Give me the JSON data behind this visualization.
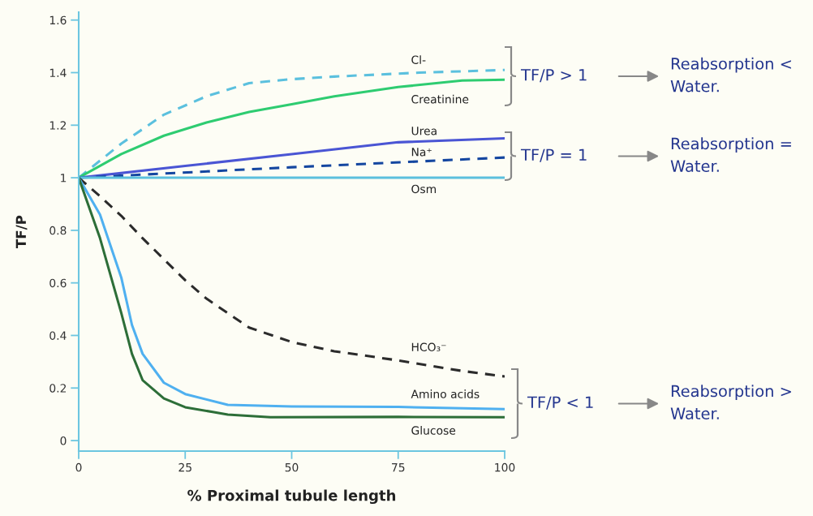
{
  "chart_data": {
    "type": "line",
    "xlabel": "% Proximal tubule length",
    "ylabel": "TF/P",
    "xlim": [
      0,
      100
    ],
    "ylim": [
      -0.04,
      1.63
    ],
    "xticks": [
      0,
      25,
      50,
      75,
      100
    ],
    "yticks": [
      0,
      0.2,
      0.4,
      0.6,
      0.8,
      1,
      1.2,
      1.4,
      1.6
    ],
    "grid": false,
    "legend": false,
    "series": [
      {
        "name": "Cl-",
        "color": "#5bc0de",
        "line_style": "dashed",
        "x": [
          0,
          10,
          20,
          30,
          40,
          50,
          60,
          80,
          100
        ],
        "values": [
          1,
          1.13,
          1.24,
          1.31,
          1.36,
          1.375,
          1.385,
          1.4,
          1.41
        ]
      },
      {
        "name": "Creatinine",
        "color": "#2ecc71",
        "line_style": "solid",
        "x": [
          0,
          10,
          20,
          30,
          40,
          50,
          60,
          75,
          90,
          100
        ],
        "values": [
          1,
          1.09,
          1.16,
          1.21,
          1.25,
          1.28,
          1.31,
          1.345,
          1.37,
          1.373
        ]
      },
      {
        "name": "Urea",
        "color": "#4a55d4",
        "line_style": "solid",
        "x": [
          0,
          25,
          50,
          75,
          100
        ],
        "values": [
          1,
          1.045,
          1.09,
          1.135,
          1.15
        ]
      },
      {
        "name": "Na⁺",
        "color": "#1446a0",
        "line_style": "dashed",
        "x": [
          0,
          50,
          100
        ],
        "values": [
          1,
          1.04,
          1.077
        ]
      },
      {
        "name": "Osm",
        "color": "#5bc0de",
        "line_style": "solid",
        "x": [
          0,
          100
        ],
        "values": [
          1,
          1
        ]
      },
      {
        "name": "HCO₃⁻",
        "color": "#2b2b2b",
        "line_style": "dashed",
        "x": [
          0,
          5,
          10,
          15,
          20,
          25,
          30,
          40,
          50,
          60,
          75,
          90,
          100
        ],
        "values": [
          1,
          0.93,
          0.855,
          0.77,
          0.69,
          0.61,
          0.54,
          0.43,
          0.375,
          0.34,
          0.305,
          0.265,
          0.244
        ]
      },
      {
        "name": "Amino acids",
        "color": "#4fb0f0",
        "line_style": "solid",
        "x": [
          0,
          5,
          10,
          12.5,
          15,
          20,
          25,
          35,
          50,
          75,
          100
        ],
        "values": [
          1,
          0.86,
          0.62,
          0.44,
          0.33,
          0.22,
          0.177,
          0.136,
          0.13,
          0.128,
          0.12
        ]
      },
      {
        "name": "Glucose",
        "color": "#2d6e38",
        "line_style": "solid",
        "x": [
          0,
          5,
          10,
          12.5,
          15,
          20,
          25,
          35,
          45,
          75,
          100
        ],
        "values": [
          1,
          0.77,
          0.485,
          0.33,
          0.23,
          0.16,
          0.127,
          0.099,
          0.089,
          0.09,
          0.089
        ]
      }
    ],
    "annotations": [
      "TF/P > 1",
      "Reabsorption <\nWater.",
      "TF/P = 1",
      "Reabsorption =\nWater.",
      "TF/P < 1",
      "Reabsorption >\nWater."
    ]
  }
}
